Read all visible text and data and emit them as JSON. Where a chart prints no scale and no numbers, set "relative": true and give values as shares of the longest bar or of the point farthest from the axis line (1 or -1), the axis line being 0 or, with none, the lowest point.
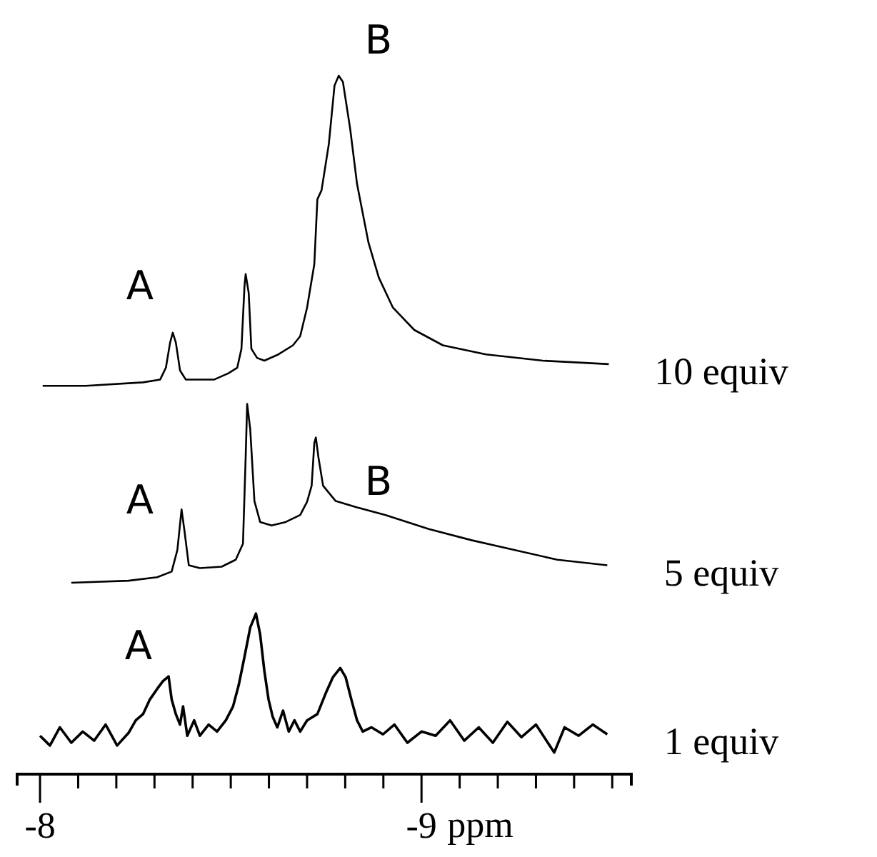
{
  "chart_data": {
    "type": "line",
    "relative": true,
    "xlabel": "ppm",
    "xlim": [
      -7.94,
      -9.55
    ],
    "xticks": [
      -8,
      {
        "value": -8.1,
        "label": null
      },
      {
        "value": -8.2,
        "label": null
      },
      {
        "value": -8.3,
        "label": null
      },
      {
        "value": -8.4,
        "label": null
      },
      {
        "value": -8.5,
        "label": null
      },
      {
        "value": -8.6,
        "label": null
      },
      {
        "value": -8.7,
        "label": null
      },
      {
        "value": -8.8,
        "label": null
      },
      {
        "value": -8.9,
        "label": null
      },
      -9,
      {
        "value": -9.1,
        "label": null
      },
      {
        "value": -9.2,
        "label": null
      },
      {
        "value": -9.3,
        "label": null
      },
      {
        "value": -9.4,
        "label": null
      },
      {
        "value": -9.5,
        "label": null
      }
    ],
    "tick_labels": "x",
    "annotations": [
      "A",
      "B",
      "A",
      "B",
      "A"
    ],
    "series": [
      {
        "name": "10 equiv",
        "color": "#000000",
        "x": [
          -8.007,
          -8.12,
          -8.27,
          -8.315,
          -8.33,
          -8.341,
          -8.348,
          -8.356,
          -8.367,
          -8.382,
          -8.419,
          -8.457,
          -8.494,
          -8.517,
          -8.528,
          -8.536,
          -8.539,
          -8.547,
          -8.554,
          -8.569,
          -8.588,
          -8.625,
          -8.663,
          -8.682,
          -8.7,
          -8.719,
          -8.727,
          -8.738,
          -8.757,
          -8.772,
          -8.783,
          -8.794,
          -8.813,
          -8.831,
          -8.861,
          -8.888,
          -8.925,
          -8.981,
          -9.056,
          -9.169,
          -9.318,
          -9.491
        ],
        "values": [
          0.556,
          0.556,
          0.561,
          0.565,
          0.582,
          0.618,
          0.632,
          0.618,
          0.578,
          0.565,
          0.565,
          0.565,
          0.574,
          0.582,
          0.609,
          0.699,
          0.716,
          0.689,
          0.609,
          0.596,
          0.592,
          0.601,
          0.614,
          0.627,
          0.668,
          0.73,
          0.823,
          0.836,
          0.902,
          0.986,
          1,
          0.991,
          0.924,
          0.845,
          0.761,
          0.711,
          0.668,
          0.636,
          0.614,
          0.601,
          0.592,
          0.587
        ]
      },
      {
        "name": "5 equiv",
        "color": "#000000",
        "x": [
          -8.082,
          -8.232,
          -8.307,
          -8.345,
          -8.36,
          -8.371,
          -8.378,
          -8.39,
          -8.419,
          -8.476,
          -8.513,
          -8.532,
          -8.539,
          -8.543,
          -8.551,
          -8.562,
          -8.577,
          -8.607,
          -8.644,
          -8.682,
          -8.7,
          -8.712,
          -8.719,
          -8.723,
          -8.73,
          -8.742,
          -8.775,
          -8.831,
          -8.906,
          -9.019,
          -9.131,
          -9.243,
          -9.356,
          -9.487
        ],
        "values": [
          0.274,
          0.277,
          0.282,
          0.29,
          0.321,
          0.379,
          0.351,
          0.299,
          0.295,
          0.297,
          0.307,
          0.33,
          0.453,
          0.53,
          0.494,
          0.391,
          0.361,
          0.356,
          0.361,
          0.371,
          0.39,
          0.413,
          0.474,
          0.482,
          0.453,
          0.413,
          0.391,
          0.382,
          0.371,
          0.351,
          0.335,
          0.321,
          0.307,
          0.299
        ]
      },
      {
        "name": "1 equiv",
        "color": "#000000",
        "x": [
          -8,
          -8.026,
          -8.052,
          -8.082,
          -8.112,
          -8.142,
          -8.172,
          -8.202,
          -8.232,
          -8.251,
          -8.27,
          -8.288,
          -8.307,
          -8.322,
          -8.337,
          -8.345,
          -8.356,
          -8.367,
          -8.375,
          -8.386,
          -8.404,
          -8.419,
          -8.442,
          -8.464,
          -8.487,
          -8.506,
          -8.521,
          -8.536,
          -8.551,
          -8.566,
          -8.577,
          -8.588,
          -8.599,
          -8.61,
          -8.622,
          -8.637,
          -8.652,
          -8.667,
          -8.682,
          -8.7,
          -8.727,
          -8.749,
          -8.768,
          -8.787,
          -8.801,
          -8.816,
          -8.831,
          -8.846,
          -8.869,
          -8.899,
          -8.929,
          -8.963,
          -9,
          -9.037,
          -9.075,
          -9.112,
          -9.15,
          -9.187,
          -9.225,
          -9.262,
          -9.3,
          -9.348,
          -9.375,
          -9.412,
          -9.449,
          -9.487
        ],
        "values": [
          0.055,
          0.041,
          0.067,
          0.045,
          0.061,
          0.048,
          0.071,
          0.041,
          0.059,
          0.077,
          0.086,
          0.107,
          0.122,
          0.133,
          0.14,
          0.107,
          0.086,
          0.071,
          0.097,
          0.055,
          0.077,
          0.055,
          0.071,
          0.061,
          0.077,
          0.097,
          0.128,
          0.168,
          0.21,
          0.23,
          0.2,
          0.148,
          0.107,
          0.082,
          0.067,
          0.091,
          0.061,
          0.077,
          0.061,
          0.077,
          0.086,
          0.116,
          0.139,
          0.152,
          0.139,
          0.107,
          0.077,
          0.061,
          0.067,
          0.057,
          0.071,
          0.045,
          0.061,
          0.055,
          0.077,
          0.048,
          0.067,
          0.045,
          0.075,
          0.053,
          0.071,
          0.031,
          0.067,
          0.055,
          0.071,
          0.057
        ]
      }
    ]
  }
}
